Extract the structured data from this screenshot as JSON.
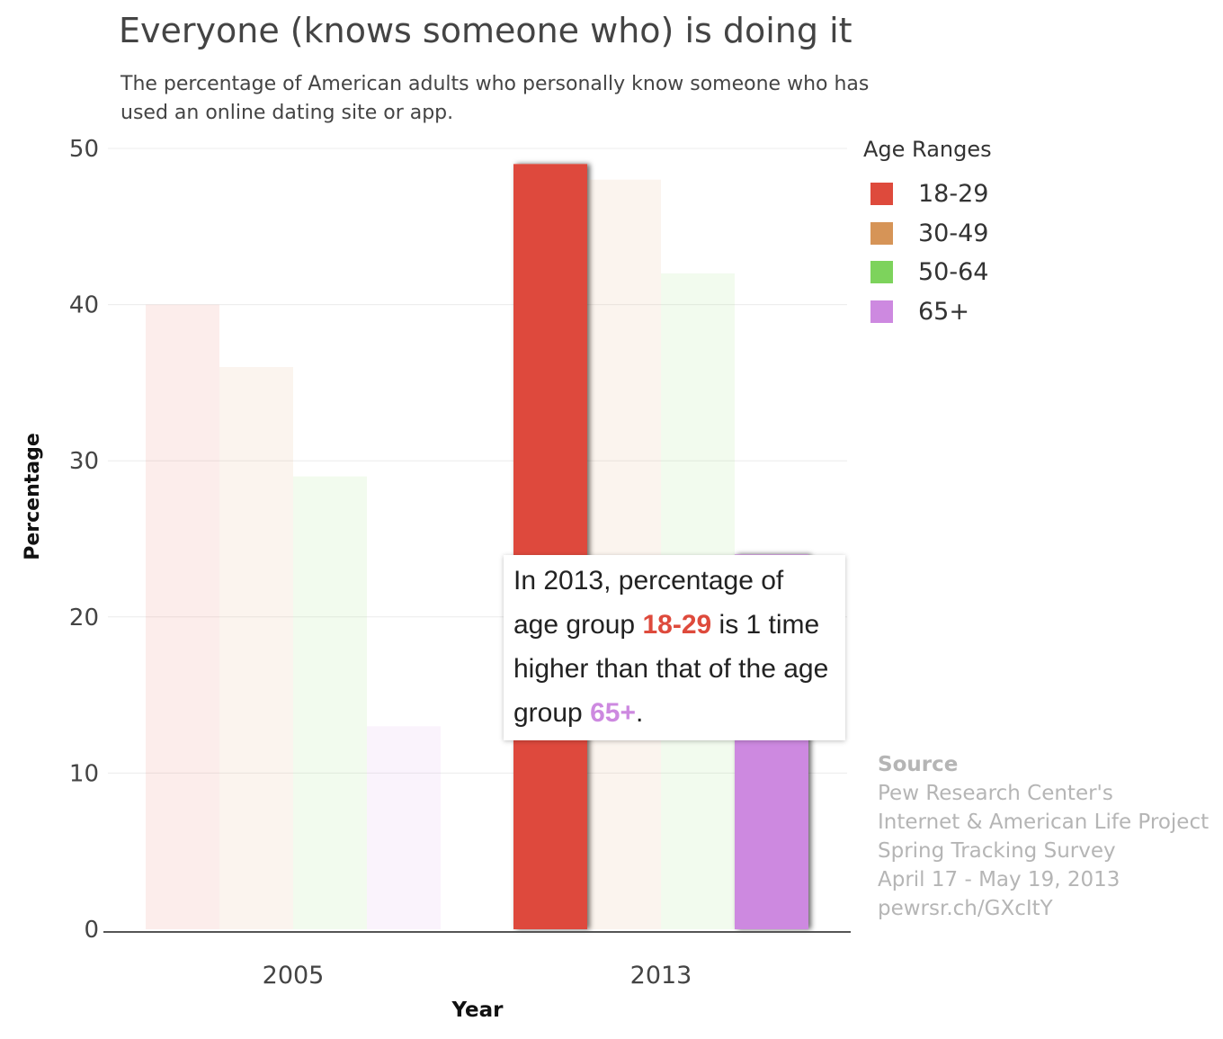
{
  "header": {
    "title": "Everyone (knows someone who) is doing it",
    "subtitle": "The percentage of American adults who personally know someone who has used an online dating site or app."
  },
  "chart_data": {
    "type": "bar",
    "categories": [
      "2005",
      "2013"
    ],
    "series": [
      {
        "name": "18-29",
        "color": "#de4a3c",
        "values": [
          40,
          49
        ]
      },
      {
        "name": "30-49",
        "color": "#d69457",
        "values": [
          36,
          48
        ]
      },
      {
        "name": "50-64",
        "color": "#7dd35c",
        "values": [
          29,
          42
        ]
      },
      {
        "name": "65+",
        "color": "#cd89e0",
        "values": [
          13,
          24
        ]
      }
    ],
    "highlight": {
      "category": "2013",
      "series": [
        "18-29",
        "65+"
      ]
    },
    "xlabel": "Year",
    "ylabel": "Percentage",
    "ylim": [
      0,
      50
    ],
    "yticks": [
      0,
      10,
      20,
      30,
      40,
      50
    ],
    "legend_title": "Age Ranges",
    "legend_position": "right",
    "grid": true
  },
  "tooltip": {
    "before_a": "In 2013, percentage of age group ",
    "group_a": "18-29",
    "middle": " is 1 time higher than that of the age group ",
    "group_b": "65+",
    "after": "."
  },
  "source": {
    "title": "Source",
    "lines": [
      "Pew Research Center's",
      "Internet & American Life Project",
      "Spring Tracking Survey",
      "April 17 - May 19, 2013",
      "pewrsr.ch/GXcItY"
    ]
  }
}
